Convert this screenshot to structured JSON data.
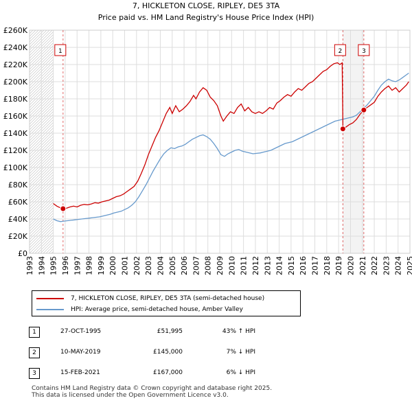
{
  "chart_data": {
    "type": "line",
    "title": "7, HICKLETON CLOSE, RIPLEY, DE5 3TA",
    "subtitle": "Price paid vs. HM Land Registry's House Price Index (HPI)",
    "xlim": [
      1993,
      2025
    ],
    "ylim": [
      0,
      260000
    ],
    "y_ticks": [
      0,
      20000,
      40000,
      60000,
      80000,
      100000,
      120000,
      140000,
      160000,
      180000,
      200000,
      220000,
      240000,
      260000
    ],
    "y_tick_labels": [
      "£0",
      "£20K",
      "£40K",
      "£60K",
      "£80K",
      "£100K",
      "£120K",
      "£140K",
      "£160K",
      "£180K",
      "£200K",
      "£220K",
      "£240K",
      "£260K"
    ],
    "x_ticks": [
      1993,
      1994,
      1995,
      1996,
      1997,
      1998,
      1999,
      2000,
      2001,
      2002,
      2003,
      2004,
      2005,
      2006,
      2007,
      2008,
      2009,
      2010,
      2011,
      2012,
      2013,
      2014,
      2015,
      2016,
      2017,
      2018,
      2019,
      2020,
      2021,
      2022,
      2023,
      2024,
      2025
    ],
    "x_tick_labels": [
      "1993",
      "1994",
      "1995",
      "1996",
      "1997",
      "1998",
      "1999",
      "2000",
      "2001",
      "2002",
      "2003",
      "2004",
      "2005",
      "2006",
      "2007",
      "2008",
      "2009",
      "2010",
      "2011",
      "2012",
      "2013",
      "2014",
      "2015",
      "2016",
      "2017",
      "2018",
      "2019",
      "2020",
      "2021",
      "2022",
      "2023",
      "2024",
      "2025"
    ],
    "grid": true,
    "hatched_regions": [
      [
        1993,
        1995.0
      ],
      [
        2025.0,
        2025.0
      ]
    ],
    "shaded_regions": [
      [
        2019.36,
        2021.12
      ]
    ],
    "series": [
      {
        "name": "7, HICKLETON CLOSE, RIPLEY, DE5 3TA (semi-detached house)",
        "color": "#cc0000",
        "points": [
          [
            1995.0,
            58000
          ],
          [
            1995.3,
            55000
          ],
          [
            1995.6,
            53000
          ],
          [
            1995.82,
            51995
          ],
          [
            1996.1,
            52500
          ],
          [
            1996.4,
            54000
          ],
          [
            1996.7,
            55000
          ],
          [
            1997.0,
            54000
          ],
          [
            1997.3,
            56000
          ],
          [
            1997.6,
            57000
          ],
          [
            1997.9,
            56500
          ],
          [
            1998.2,
            57500
          ],
          [
            1998.5,
            59000
          ],
          [
            1998.8,
            58500
          ],
          [
            1999.1,
            60000
          ],
          [
            1999.4,
            61000
          ],
          [
            1999.7,
            62000
          ],
          [
            2000.0,
            64000
          ],
          [
            2000.3,
            66000
          ],
          [
            2000.6,
            67000
          ],
          [
            2000.9,
            69000
          ],
          [
            2001.2,
            72000
          ],
          [
            2001.5,
            75000
          ],
          [
            2001.8,
            78000
          ],
          [
            2002.1,
            84000
          ],
          [
            2002.4,
            93000
          ],
          [
            2002.7,
            103000
          ],
          [
            2003.0,
            115000
          ],
          [
            2003.3,
            125000
          ],
          [
            2003.6,
            135000
          ],
          [
            2003.9,
            143000
          ],
          [
            2004.2,
            153000
          ],
          [
            2004.5,
            163000
          ],
          [
            2004.8,
            170000
          ],
          [
            2005.0,
            163000
          ],
          [
            2005.3,
            172000
          ],
          [
            2005.6,
            165000
          ],
          [
            2005.9,
            168000
          ],
          [
            2006.2,
            172000
          ],
          [
            2006.5,
            177000
          ],
          [
            2006.8,
            184000
          ],
          [
            2007.0,
            180000
          ],
          [
            2007.3,
            188000
          ],
          [
            2007.6,
            193000
          ],
          [
            2007.9,
            190000
          ],
          [
            2008.2,
            182000
          ],
          [
            2008.5,
            178000
          ],
          [
            2008.8,
            172000
          ],
          [
            2009.1,
            160000
          ],
          [
            2009.3,
            154000
          ],
          [
            2009.6,
            160000
          ],
          [
            2009.9,
            165000
          ],
          [
            2010.2,
            163000
          ],
          [
            2010.5,
            170000
          ],
          [
            2010.8,
            174000
          ],
          [
            2011.1,
            166000
          ],
          [
            2011.4,
            170000
          ],
          [
            2011.7,
            165000
          ],
          [
            2012.0,
            163000
          ],
          [
            2012.3,
            165000
          ],
          [
            2012.6,
            163000
          ],
          [
            2012.9,
            166000
          ],
          [
            2013.2,
            170000
          ],
          [
            2013.5,
            168000
          ],
          [
            2013.8,
            175000
          ],
          [
            2014.1,
            178000
          ],
          [
            2014.4,
            182000
          ],
          [
            2014.7,
            185000
          ],
          [
            2015.0,
            183000
          ],
          [
            2015.3,
            188000
          ],
          [
            2015.6,
            192000
          ],
          [
            2015.9,
            190000
          ],
          [
            2016.2,
            194000
          ],
          [
            2016.5,
            198000
          ],
          [
            2016.8,
            200000
          ],
          [
            2017.1,
            204000
          ],
          [
            2017.4,
            208000
          ],
          [
            2017.7,
            212000
          ],
          [
            2018.0,
            214000
          ],
          [
            2018.3,
            218000
          ],
          [
            2018.6,
            221000
          ],
          [
            2018.9,
            222000
          ],
          [
            2019.1,
            220000
          ],
          [
            2019.3,
            222000
          ],
          [
            2019.36,
            145000
          ],
          [
            2019.6,
            147000
          ],
          [
            2019.9,
            150000
          ],
          [
            2020.2,
            152000
          ],
          [
            2020.5,
            156000
          ],
          [
            2020.8,
            162000
          ],
          [
            2021.12,
            167000
          ],
          [
            2021.4,
            170000
          ],
          [
            2021.7,
            173000
          ],
          [
            2022.0,
            176000
          ],
          [
            2022.3,
            183000
          ],
          [
            2022.6,
            188000
          ],
          [
            2022.9,
            192000
          ],
          [
            2023.2,
            195000
          ],
          [
            2023.5,
            190000
          ],
          [
            2023.8,
            193000
          ],
          [
            2024.1,
            188000
          ],
          [
            2024.4,
            192000
          ],
          [
            2024.7,
            196000
          ],
          [
            2024.9,
            200000
          ]
        ]
      },
      {
        "name": "HPI: Average price, semi-detached house, Amber Valley",
        "color": "#6699cc",
        "points": [
          [
            1995.0,
            40000
          ],
          [
            1995.3,
            38000
          ],
          [
            1995.6,
            37000
          ],
          [
            1995.9,
            37500
          ],
          [
            1996.2,
            38000
          ],
          [
            1996.5,
            38500
          ],
          [
            1996.8,
            39000
          ],
          [
            1997.1,
            39500
          ],
          [
            1997.4,
            40000
          ],
          [
            1997.7,
            40500
          ],
          [
            1998.0,
            41000
          ],
          [
            1998.3,
            41500
          ],
          [
            1998.6,
            42000
          ],
          [
            1998.9,
            42500
          ],
          [
            1999.2,
            43500
          ],
          [
            1999.5,
            44500
          ],
          [
            1999.8,
            45500
          ],
          [
            2000.1,
            47000
          ],
          [
            2000.4,
            48000
          ],
          [
            2000.7,
            49000
          ],
          [
            2001.0,
            51000
          ],
          [
            2001.3,
            53000
          ],
          [
            2001.6,
            56000
          ],
          [
            2001.9,
            60000
          ],
          [
            2002.2,
            66000
          ],
          [
            2002.5,
            73000
          ],
          [
            2002.8,
            80000
          ],
          [
            2003.1,
            88000
          ],
          [
            2003.4,
            96000
          ],
          [
            2003.7,
            103000
          ],
          [
            2004.0,
            110000
          ],
          [
            2004.3,
            116000
          ],
          [
            2004.6,
            120000
          ],
          [
            2004.9,
            123000
          ],
          [
            2005.2,
            122000
          ],
          [
            2005.5,
            124000
          ],
          [
            2005.8,
            125000
          ],
          [
            2006.1,
            127000
          ],
          [
            2006.4,
            130000
          ],
          [
            2006.7,
            133000
          ],
          [
            2007.0,
            135000
          ],
          [
            2007.3,
            137000
          ],
          [
            2007.6,
            138000
          ],
          [
            2007.9,
            136000
          ],
          [
            2008.2,
            133000
          ],
          [
            2008.5,
            128000
          ],
          [
            2008.8,
            122000
          ],
          [
            2009.1,
            115000
          ],
          [
            2009.4,
            113000
          ],
          [
            2009.7,
            116000
          ],
          [
            2010.0,
            118000
          ],
          [
            2010.3,
            120000
          ],
          [
            2010.6,
            121000
          ],
          [
            2010.9,
            119000
          ],
          [
            2011.2,
            118000
          ],
          [
            2011.5,
            117000
          ],
          [
            2011.8,
            116000
          ],
          [
            2012.1,
            116500
          ],
          [
            2012.4,
            117000
          ],
          [
            2012.7,
            118000
          ],
          [
            2013.0,
            119000
          ],
          [
            2013.3,
            120000
          ],
          [
            2013.6,
            122000
          ],
          [
            2013.9,
            124000
          ],
          [
            2014.2,
            126000
          ],
          [
            2014.5,
            128000
          ],
          [
            2014.8,
            129000
          ],
          [
            2015.1,
            130000
          ],
          [
            2015.4,
            132000
          ],
          [
            2015.7,
            134000
          ],
          [
            2016.0,
            136000
          ],
          [
            2016.3,
            138000
          ],
          [
            2016.6,
            140000
          ],
          [
            2016.9,
            142000
          ],
          [
            2017.2,
            144000
          ],
          [
            2017.5,
            146000
          ],
          [
            2017.8,
            148000
          ],
          [
            2018.1,
            150000
          ],
          [
            2018.4,
            152000
          ],
          [
            2018.7,
            154000
          ],
          [
            2019.0,
            155000
          ],
          [
            2019.3,
            156000
          ],
          [
            2019.6,
            157000
          ],
          [
            2019.9,
            158000
          ],
          [
            2020.2,
            159000
          ],
          [
            2020.5,
            161000
          ],
          [
            2020.8,
            165000
          ],
          [
            2021.1,
            169000
          ],
          [
            2021.4,
            173000
          ],
          [
            2021.7,
            178000
          ],
          [
            2022.0,
            183000
          ],
          [
            2022.3,
            190000
          ],
          [
            2022.6,
            196000
          ],
          [
            2022.9,
            200000
          ],
          [
            2023.2,
            203000
          ],
          [
            2023.5,
            201000
          ],
          [
            2023.8,
            200000
          ],
          [
            2024.1,
            202000
          ],
          [
            2024.4,
            205000
          ],
          [
            2024.7,
            208000
          ],
          [
            2024.9,
            210000
          ]
        ]
      }
    ],
    "sales": [
      {
        "id": "1",
        "x": 1995.82,
        "y": 51995
      },
      {
        "id": "2",
        "x": 2019.36,
        "y": 145000
      },
      {
        "id": "3",
        "x": 2021.12,
        "y": 167000
      }
    ]
  },
  "legend": {
    "property_label": "7, HICKLETON CLOSE, RIPLEY, DE5 3TA (semi-detached house)",
    "hpi_label": "HPI: Average price, semi-detached house, Amber Valley",
    "property_color": "#cc0000",
    "hpi_color": "#6699cc"
  },
  "sales_table": [
    {
      "id": "1",
      "date": "27-OCT-1995",
      "price": "£51,995",
      "hpi": "43% ↑ HPI"
    },
    {
      "id": "2",
      "date": "10-MAY-2019",
      "price": "£145,000",
      "hpi": "7% ↓ HPI"
    },
    {
      "id": "3",
      "date": "15-FEB-2021",
      "price": "£167,000",
      "hpi": "6% ↓ HPI"
    }
  ],
  "footer": {
    "line1": "Contains HM Land Registry data © Crown copyright and database right 2025.",
    "line2": "This data is licensed under the Open Government Licence v3.0."
  }
}
